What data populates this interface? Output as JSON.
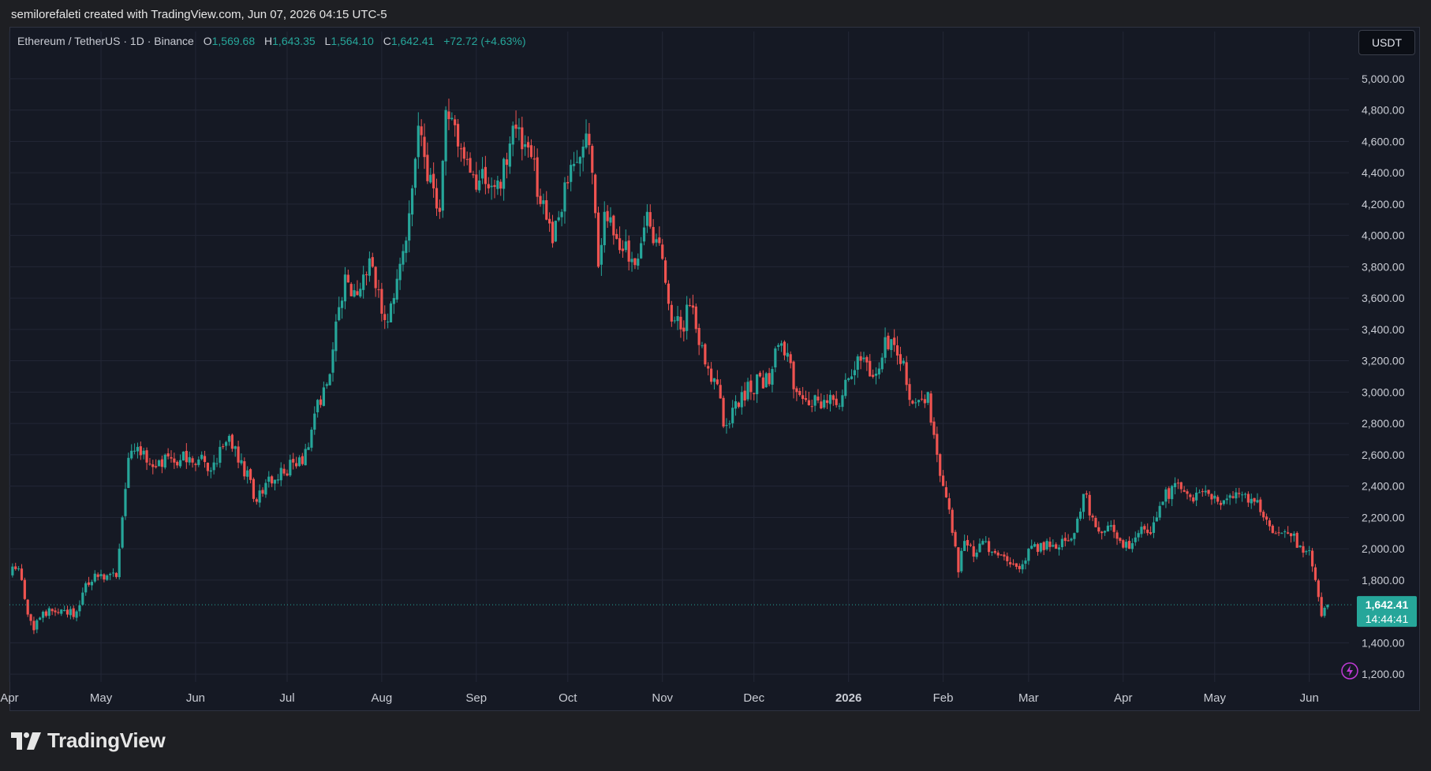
{
  "header": {
    "attribution": "semilorefaleti created with TradingView.com, Jun 07, 2026 04:15 UTC-5"
  },
  "legend": {
    "symbol": "Ethereum / TetherUS · 1D · Binance",
    "open_label": "O",
    "open": "1,569.68",
    "high_label": "H",
    "high": "1,643.35",
    "low_label": "L",
    "low": "1,564.10",
    "close_label": "C",
    "close": "1,642.41",
    "change": "+72.72 (+4.63%)"
  },
  "currency_button": {
    "label": "USDT"
  },
  "price_badge": {
    "price": "1,642.41",
    "countdown": "14:44:41"
  },
  "footer": {
    "brand": "TradingView"
  },
  "colors": {
    "up": "#26a69a",
    "down": "#ef5350",
    "background": "#151924",
    "grid": "#232736",
    "axis_text": "#c9ccd4",
    "badge": "#26a69a"
  },
  "icons": {
    "alert": "lightning-icon",
    "logo": "tradingview-logo-icon"
  },
  "chart_data": {
    "type": "candlestick",
    "title": "",
    "xlabel": "",
    "ylabel": "",
    "ylim": [
      1150,
      5150
    ],
    "y_ticks": [
      {
        "value": 1200,
        "label": "1,200.00"
      },
      {
        "value": 1400,
        "label": "1,400.00"
      },
      {
        "value": 1800,
        "label": "1,800.00"
      },
      {
        "value": 2000,
        "label": "2,000.00"
      },
      {
        "value": 2200,
        "label": "2,200.00"
      },
      {
        "value": 2400,
        "label": "2,400.00"
      },
      {
        "value": 2600,
        "label": "2,600.00"
      },
      {
        "value": 2800,
        "label": "2,800.00"
      },
      {
        "value": 3000,
        "label": "3,000.00"
      },
      {
        "value": 3200,
        "label": "3,200.00"
      },
      {
        "value": 3400,
        "label": "3,400.00"
      },
      {
        "value": 3600,
        "label": "3,600.00"
      },
      {
        "value": 3800,
        "label": "3,800.00"
      },
      {
        "value": 4000,
        "label": "4,000.00"
      },
      {
        "value": 4200,
        "label": "4,200.00"
      },
      {
        "value": 4400,
        "label": "4,400.00"
      },
      {
        "value": 4600,
        "label": "4,600.00"
      },
      {
        "value": 4800,
        "label": "4,800.00"
      },
      {
        "value": 5000,
        "label": "5,000.00"
      }
    ],
    "x_ticks": [
      {
        "date": "2025-04-01",
        "label": "Apr",
        "bold": false
      },
      {
        "date": "2025-05-01",
        "label": "May",
        "bold": false
      },
      {
        "date": "2025-06-01",
        "label": "Jun",
        "bold": false
      },
      {
        "date": "2025-07-01",
        "label": "Jul",
        "bold": false
      },
      {
        "date": "2025-08-01",
        "label": "Aug",
        "bold": false
      },
      {
        "date": "2025-09-01",
        "label": "Sep",
        "bold": false
      },
      {
        "date": "2025-10-01",
        "label": "Oct",
        "bold": false
      },
      {
        "date": "2025-11-01",
        "label": "Nov",
        "bold": false
      },
      {
        "date": "2025-12-01",
        "label": "Dec",
        "bold": false
      },
      {
        "date": "2026-01-01",
        "label": "2026",
        "bold": true
      },
      {
        "date": "2026-02-01",
        "label": "Feb",
        "bold": false
      },
      {
        "date": "2026-03-01",
        "label": "Mar",
        "bold": false
      },
      {
        "date": "2026-04-01",
        "label": "Apr",
        "bold": false
      },
      {
        "date": "2026-05-01",
        "label": "May",
        "bold": false
      },
      {
        "date": "2026-06-01",
        "label": "Jun",
        "bold": false
      }
    ],
    "x_range": [
      "2025-04-01",
      "2026-06-14"
    ],
    "last_price": 1642.41,
    "grid": true,
    "closes": [
      {
        "date": "2025-04-01",
        "close": 1830
      },
      {
        "date": "2025-04-03",
        "close": 1870
      },
      {
        "date": "2025-04-05",
        "close": 1800
      },
      {
        "date": "2025-04-07",
        "close": 1580
      },
      {
        "date": "2025-04-09",
        "close": 1480
      },
      {
        "date": "2025-04-11",
        "close": 1560
      },
      {
        "date": "2025-04-14",
        "close": 1620
      },
      {
        "date": "2025-04-17",
        "close": 1590
      },
      {
        "date": "2025-04-20",
        "close": 1580
      },
      {
        "date": "2025-04-23",
        "close": 1600
      },
      {
        "date": "2025-04-26",
        "close": 1780
      },
      {
        "date": "2025-04-30",
        "close": 1820
      },
      {
        "date": "2025-05-03",
        "close": 1830
      },
      {
        "date": "2025-05-06",
        "close": 1820
      },
      {
        "date": "2025-05-08",
        "close": 2200
      },
      {
        "date": "2025-05-10",
        "close": 2580
      },
      {
        "date": "2025-05-13",
        "close": 2650
      },
      {
        "date": "2025-05-16",
        "close": 2550
      },
      {
        "date": "2025-05-19",
        "close": 2520
      },
      {
        "date": "2025-05-22",
        "close": 2600
      },
      {
        "date": "2025-05-25",
        "close": 2550
      },
      {
        "date": "2025-05-28",
        "close": 2620
      },
      {
        "date": "2025-05-31",
        "close": 2550
      },
      {
        "date": "2025-06-03",
        "close": 2600
      },
      {
        "date": "2025-06-06",
        "close": 2500
      },
      {
        "date": "2025-06-09",
        "close": 2650
      },
      {
        "date": "2025-06-12",
        "close": 2720
      },
      {
        "date": "2025-06-15",
        "close": 2550
      },
      {
        "date": "2025-06-18",
        "close": 2500
      },
      {
        "date": "2025-06-21",
        "close": 2300
      },
      {
        "date": "2025-06-24",
        "close": 2420
      },
      {
        "date": "2025-06-27",
        "close": 2440
      },
      {
        "date": "2025-06-30",
        "close": 2480
      },
      {
        "date": "2025-07-03",
        "close": 2550
      },
      {
        "date": "2025-07-06",
        "close": 2540
      },
      {
        "date": "2025-07-09",
        "close": 2760
      },
      {
        "date": "2025-07-11",
        "close": 2950
      },
      {
        "date": "2025-07-14",
        "close": 3050
      },
      {
        "date": "2025-07-17",
        "close": 3450
      },
      {
        "date": "2025-07-20",
        "close": 3750
      },
      {
        "date": "2025-07-23",
        "close": 3650
      },
      {
        "date": "2025-07-26",
        "close": 3750
      },
      {
        "date": "2025-07-29",
        "close": 3800
      },
      {
        "date": "2025-08-01",
        "close": 3500
      },
      {
        "date": "2025-08-03",
        "close": 3450
      },
      {
        "date": "2025-08-05",
        "close": 3600
      },
      {
        "date": "2025-08-08",
        "close": 3900
      },
      {
        "date": "2025-08-11",
        "close": 4300
      },
      {
        "date": "2025-08-13",
        "close": 4700
      },
      {
        "date": "2025-08-15",
        "close": 4500
      },
      {
        "date": "2025-08-18",
        "close": 4300
      },
      {
        "date": "2025-08-20",
        "close": 4150
      },
      {
        "date": "2025-08-22",
        "close": 4800
      },
      {
        "date": "2025-08-24",
        "close": 4750
      },
      {
        "date": "2025-08-27",
        "close": 4550
      },
      {
        "date": "2025-08-30",
        "close": 4400
      },
      {
        "date": "2025-09-02",
        "close": 4350
      },
      {
        "date": "2025-09-05",
        "close": 4300
      },
      {
        "date": "2025-09-08",
        "close": 4350
      },
      {
        "date": "2025-09-11",
        "close": 4450
      },
      {
        "date": "2025-09-13",
        "close": 4700
      },
      {
        "date": "2025-09-16",
        "close": 4550
      },
      {
        "date": "2025-09-19",
        "close": 4500
      },
      {
        "date": "2025-09-22",
        "close": 4200
      },
      {
        "date": "2025-09-24",
        "close": 4100
      },
      {
        "date": "2025-09-26",
        "close": 3950
      },
      {
        "date": "2025-09-29",
        "close": 4150
      },
      {
        "date": "2025-10-02",
        "close": 4450
      },
      {
        "date": "2025-10-05",
        "close": 4500
      },
      {
        "date": "2025-10-07",
        "close": 4650
      },
      {
        "date": "2025-10-09",
        "close": 4400
      },
      {
        "date": "2025-10-11",
        "close": 3800
      },
      {
        "date": "2025-10-13",
        "close": 4150
      },
      {
        "date": "2025-10-16",
        "close": 4000
      },
      {
        "date": "2025-10-19",
        "close": 3900
      },
      {
        "date": "2025-10-22",
        "close": 3850
      },
      {
        "date": "2025-10-25",
        "close": 3950
      },
      {
        "date": "2025-10-27",
        "close": 4150
      },
      {
        "date": "2025-10-29",
        "close": 3950
      },
      {
        "date": "2025-11-01",
        "close": 3850
      },
      {
        "date": "2025-11-04",
        "close": 3450
      },
      {
        "date": "2025-11-07",
        "close": 3400
      },
      {
        "date": "2025-11-10",
        "close": 3550
      },
      {
        "date": "2025-11-13",
        "close": 3300
      },
      {
        "date": "2025-11-16",
        "close": 3150
      },
      {
        "date": "2025-11-19",
        "close": 3050
      },
      {
        "date": "2025-11-21",
        "close": 2780
      },
      {
        "date": "2025-11-24",
        "close": 2900
      },
      {
        "date": "2025-11-27",
        "close": 3000
      },
      {
        "date": "2025-11-30",
        "close": 3000
      },
      {
        "date": "2025-12-03",
        "close": 3100
      },
      {
        "date": "2025-12-06",
        "close": 3050
      },
      {
        "date": "2025-12-09",
        "close": 3300
      },
      {
        "date": "2025-12-12",
        "close": 3250
      },
      {
        "date": "2025-12-15",
        "close": 3000
      },
      {
        "date": "2025-12-18",
        "close": 2950
      },
      {
        "date": "2025-12-21",
        "close": 2980
      },
      {
        "date": "2025-12-24",
        "close": 2950
      },
      {
        "date": "2025-12-27",
        "close": 2950
      },
      {
        "date": "2025-12-30",
        "close": 2980
      },
      {
        "date": "2026-01-02",
        "close": 3100
      },
      {
        "date": "2026-01-05",
        "close": 3200
      },
      {
        "date": "2026-01-08",
        "close": 3100
      },
      {
        "date": "2026-01-11",
        "close": 3150
      },
      {
        "date": "2026-01-13",
        "close": 3350
      },
      {
        "date": "2026-01-16",
        "close": 3300
      },
      {
        "date": "2026-01-19",
        "close": 3200
      },
      {
        "date": "2026-01-21",
        "close": 2950
      },
      {
        "date": "2026-01-24",
        "close": 2950
      },
      {
        "date": "2026-01-27",
        "close": 3000
      },
      {
        "date": "2026-01-30",
        "close": 2600
      },
      {
        "date": "2026-02-01",
        "close": 2400
      },
      {
        "date": "2026-02-03",
        "close": 2250
      },
      {
        "date": "2026-02-06",
        "close": 1850
      },
      {
        "date": "2026-02-08",
        "close": 2050
      },
      {
        "date": "2026-02-11",
        "close": 1950
      },
      {
        "date": "2026-02-14",
        "close": 2050
      },
      {
        "date": "2026-02-17",
        "close": 1980
      },
      {
        "date": "2026-02-20",
        "close": 1960
      },
      {
        "date": "2026-02-23",
        "close": 1900
      },
      {
        "date": "2026-02-26",
        "close": 1870
      },
      {
        "date": "2026-03-01",
        "close": 2000
      },
      {
        "date": "2026-03-04",
        "close": 1980
      },
      {
        "date": "2026-03-07",
        "close": 2050
      },
      {
        "date": "2026-03-10",
        "close": 2000
      },
      {
        "date": "2026-03-13",
        "close": 2050
      },
      {
        "date": "2026-03-16",
        "close": 2100
      },
      {
        "date": "2026-03-19",
        "close": 2350
      },
      {
        "date": "2026-03-22",
        "close": 2200
      },
      {
        "date": "2026-03-25",
        "close": 2100
      },
      {
        "date": "2026-03-28",
        "close": 2150
      },
      {
        "date": "2026-03-31",
        "close": 2050
      },
      {
        "date": "2026-04-03",
        "close": 2000
      },
      {
        "date": "2026-04-06",
        "close": 2100
      },
      {
        "date": "2026-04-09",
        "close": 2100
      },
      {
        "date": "2026-04-12",
        "close": 2200
      },
      {
        "date": "2026-04-14",
        "close": 2300
      },
      {
        "date": "2026-04-17",
        "close": 2400
      },
      {
        "date": "2026-04-20",
        "close": 2380
      },
      {
        "date": "2026-04-23",
        "close": 2330
      },
      {
        "date": "2026-04-26",
        "close": 2360
      },
      {
        "date": "2026-04-29",
        "close": 2350
      },
      {
        "date": "2026-05-02",
        "close": 2300
      },
      {
        "date": "2026-05-05",
        "close": 2320
      },
      {
        "date": "2026-05-08",
        "close": 2360
      },
      {
        "date": "2026-05-11",
        "close": 2350
      },
      {
        "date": "2026-05-14",
        "close": 2300
      },
      {
        "date": "2026-05-17",
        "close": 2200
      },
      {
        "date": "2026-05-20",
        "close": 2100
      },
      {
        "date": "2026-05-23",
        "close": 2100
      },
      {
        "date": "2026-05-26",
        "close": 2080
      },
      {
        "date": "2026-05-29",
        "close": 2020
      },
      {
        "date": "2026-06-01",
        "close": 1990
      },
      {
        "date": "2026-06-03",
        "close": 1800
      },
      {
        "date": "2026-06-05",
        "close": 1570
      },
      {
        "date": "2026-06-07",
        "close": 1642
      }
    ]
  }
}
